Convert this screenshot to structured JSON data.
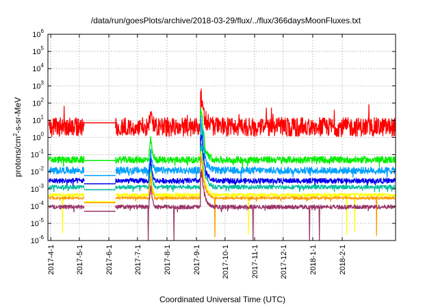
{
  "chart_data": {
    "type": "line",
    "title": "/data/run/goesPlots/archive/2018-03-29/flux/../flux/366daysMoonFluxes.txt",
    "xlabel": "Coordinated Universal Time (UTC)",
    "ylabel": "protons/cm2-s-sr-MeV",
    "ylabel_base": "protons/cm",
    "ylabel_sup": "2",
    "ylabel_rest": "-s-sr-MeV",
    "yscale": "log",
    "ylim": [
      1e-06,
      1000000
    ],
    "xlim": [
      "2017-03-29",
      "2018-03-29"
    ],
    "y_ticks": [
      {
        "value": 1e-06,
        "base": "10",
        "exp": "-6"
      },
      {
        "value": 1e-05,
        "base": "10",
        "exp": "-5"
      },
      {
        "value": 0.0001,
        "base": "10",
        "exp": "-4"
      },
      {
        "value": 0.001,
        "base": "10",
        "exp": "-3"
      },
      {
        "value": 0.01,
        "base": "10",
        "exp": "-2"
      },
      {
        "value": 0.1,
        "base": "10",
        "exp": "-1"
      },
      {
        "value": 1,
        "base": "10",
        "exp": "0"
      },
      {
        "value": 10,
        "base": "10",
        "exp": "1"
      },
      {
        "value": 100,
        "base": "10",
        "exp": "2"
      },
      {
        "value": 1000,
        "base": "10",
        "exp": "3"
      },
      {
        "value": 10000,
        "base": "10",
        "exp": "4"
      },
      {
        "value": 100000,
        "base": "10",
        "exp": "5"
      },
      {
        "value": 1000000,
        "base": "10",
        "exp": "6"
      }
    ],
    "x_ticks": [
      "2017-4-1",
      "2017-5-1",
      "2017-6-1",
      "2017-7-1",
      "2017-8-1",
      "2017-9-1",
      "2017-10-1",
      "2017-11-1",
      "2017-12-1",
      "2018-1-1",
      "2018-2-1"
    ],
    "grid": true,
    "data_gap": [
      "2017-05-06",
      "2017-06-08"
    ],
    "events": [
      {
        "date": "2017-07-14",
        "peak_channel_multiplier": 1.0
      },
      {
        "date": "2017-09-06",
        "peak": 3000
      },
      {
        "date": "2017-09-10",
        "peak": 1000
      }
    ],
    "series": [
      {
        "color": "#ff0000",
        "baseline": 4.0,
        "noise_decades": 0.55,
        "gap_level": 7
      },
      {
        "color": "#00ee00",
        "baseline": 0.05,
        "noise_decades": 0.2,
        "gap_level": 0.045
      },
      {
        "color": "#00a0ff",
        "baseline": 0.012,
        "noise_decades": 0.2,
        "gap_level": 0.006
      },
      {
        "color": "#0000ee",
        "baseline": 0.003,
        "noise_decades": 0.15,
        "gap_level": 0.002
      },
      {
        "color": "#00c0a0",
        "baseline": 0.0013,
        "noise_decades": 0.12,
        "gap_level": 0.0009
      },
      {
        "color": "#ffff00",
        "baseline": 0.00045,
        "noise_decades": 0.1,
        "gap_level": 0.00018
      },
      {
        "color": "#ff9900",
        "baseline": 0.0003,
        "noise_decades": 0.08,
        "gap_level": 0.00016
      },
      {
        "color": "#993366",
        "baseline": 9e-05,
        "noise_decades": 0.12,
        "gap_level": 5e-05
      }
    ]
  }
}
